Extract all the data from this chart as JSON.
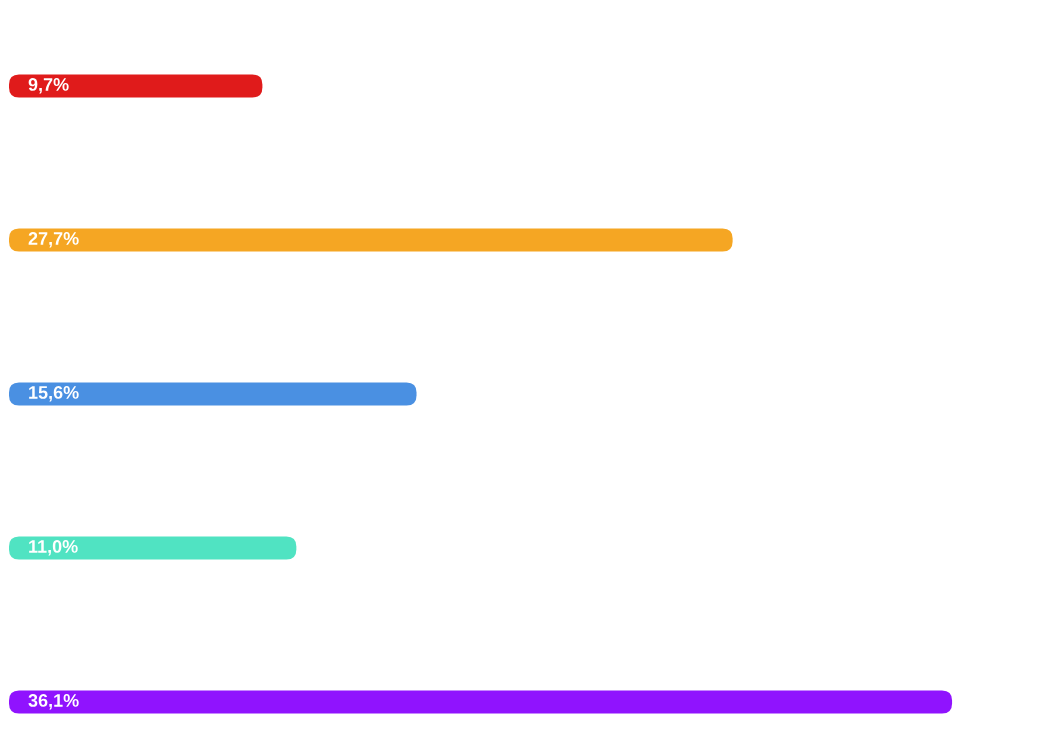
{
  "chart_data": {
    "type": "bar",
    "orientation": "horizontal",
    "categories": [
      null,
      null,
      null,
      null,
      null
    ],
    "values": [
      9.7,
      27.7,
      15.6,
      11.0,
      36.1
    ],
    "colors": [
      "#e01b1b",
      "#f5a623",
      "#4a90e2",
      "#50e3c2",
      "#9013fe"
    ],
    "value_labels": [
      "9,7%",
      "27,7%",
      "15,6%",
      "11,0%",
      "36,1%"
    ],
    "tick_labels": false,
    "grid": false
  }
}
